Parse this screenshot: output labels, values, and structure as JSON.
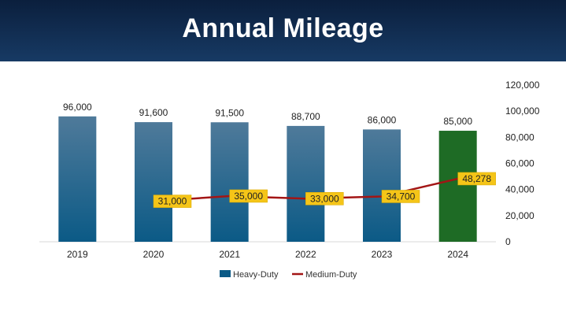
{
  "header": {
    "title": "Annual Mileage"
  },
  "colors": {
    "bar_gradient_top": "#4f7a9a",
    "bar_gradient_bottom": "#0b5a86",
    "highlight_bar": "#1e6b25",
    "line": "#a31515",
    "label_box": "#f5c518",
    "label_box_border": "#d8a800"
  },
  "chart_data": {
    "type": "bar+line",
    "title": "Annual Mileage",
    "categories": [
      "2019",
      "2020",
      "2021",
      "2022",
      "2023",
      "2024"
    ],
    "series": [
      {
        "name": "Heavy-Duty",
        "type": "bar",
        "values": [
          96000,
          91600,
          91500,
          88700,
          86000,
          85000
        ],
        "labels": [
          "96,000",
          "91,600",
          "91,500",
          "88,700",
          "86,000",
          "85,000"
        ]
      },
      {
        "name": "Medium-Duty",
        "type": "line",
        "values": [
          null,
          31000,
          35000,
          33000,
          34700,
          48278
        ],
        "labels": [
          "",
          "31,000",
          "35,000",
          "33,000",
          "34,700",
          "48,278"
        ]
      }
    ],
    "highlight_category": "2024",
    "y_axis": {
      "position": "right",
      "ylim": [
        0,
        120000
      ],
      "ticks": [
        "0",
        "20,000",
        "40,000",
        "60,000",
        "80,000",
        "100,000",
        "120,000"
      ]
    },
    "legend": {
      "placement": "bottom",
      "entries": [
        "Heavy-Duty",
        "Medium-Duty"
      ]
    },
    "grid": false
  }
}
